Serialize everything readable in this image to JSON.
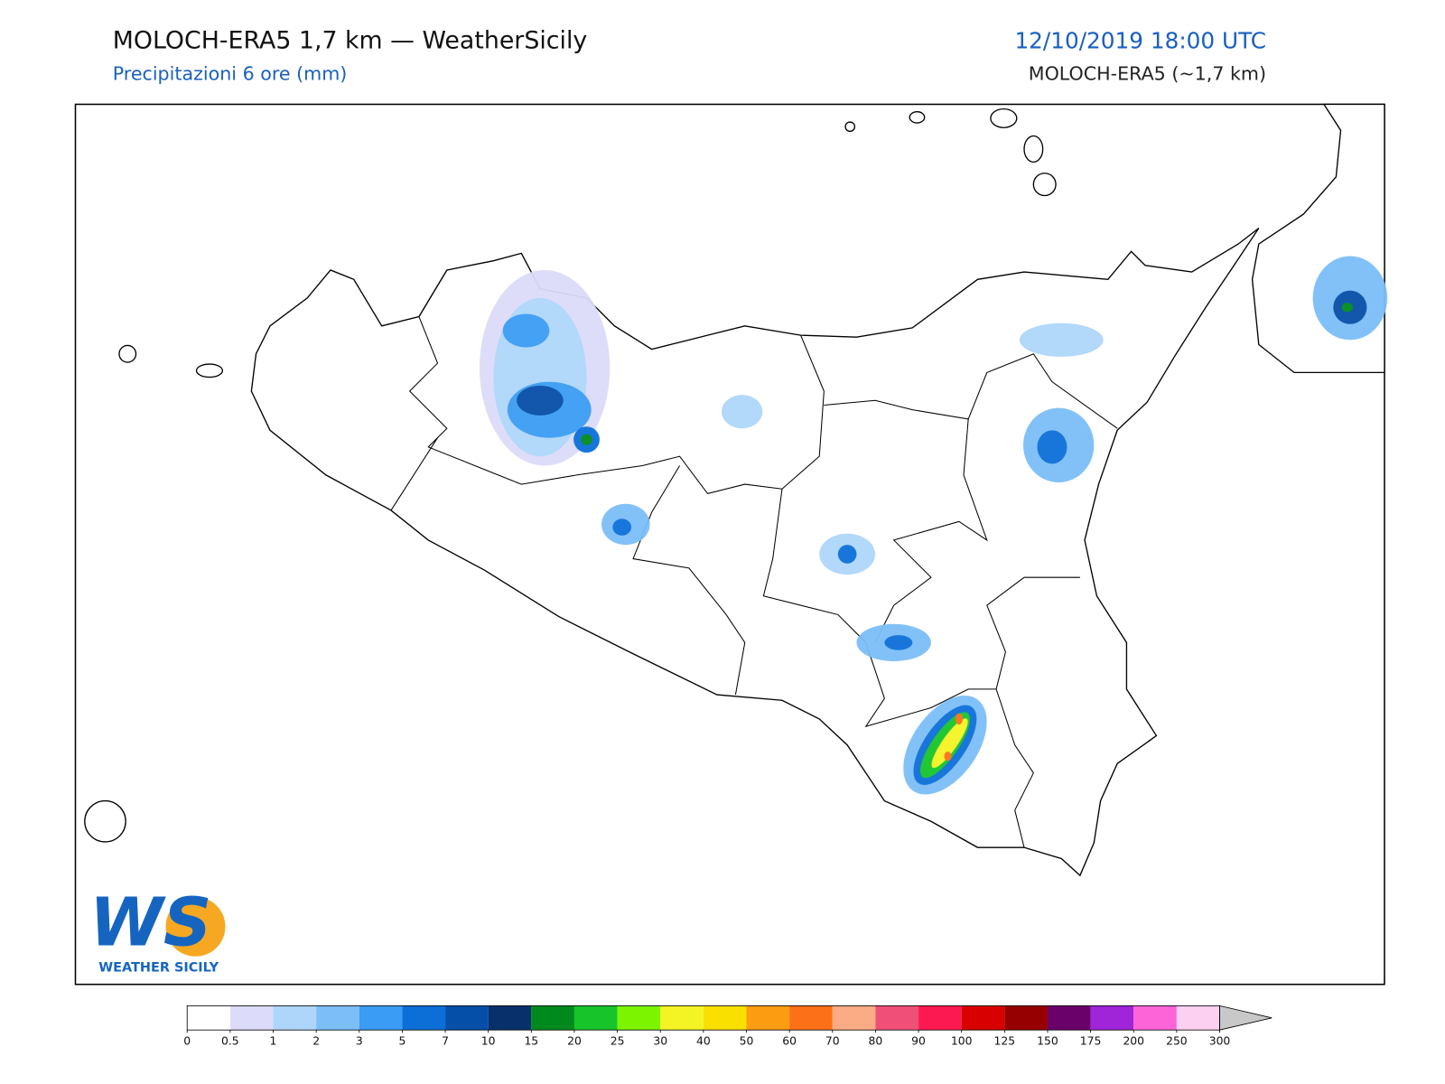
{
  "header": {
    "title": "MOLOCH-ERA5 1,7 km — WeatherSicily",
    "subtitle": "Precipitazioni 6 ore (mm)",
    "datetime": "12/10/2019 18:00 UTC",
    "model": "MOLOCH-ERA5 (~1,7 km)"
  },
  "logo": {
    "text": "WS",
    "caption": "WEATHER SICILY"
  },
  "colorbar": {
    "ticks": [
      0,
      0.5,
      1,
      2,
      3,
      5,
      7,
      10,
      15,
      20,
      25,
      30,
      40,
      50,
      60,
      70,
      80,
      90,
      100,
      125,
      150,
      175,
      200,
      250,
      300
    ],
    "colors": [
      "#ffffff",
      "#dcdcfa",
      "#aed6fa",
      "#7cbef8",
      "#3a9cf4",
      "#0c6fd8",
      "#064fa8",
      "#08306b",
      "#008a1e",
      "#17c42a",
      "#7cf400",
      "#f4f424",
      "#fae000",
      "#fc9c10",
      "#fc7018",
      "#fcac84",
      "#f05078",
      "#fc1850",
      "#d80000",
      "#960000",
      "#6a006a",
      "#a024d8",
      "#fc64d8",
      "#fcd0f0"
    ],
    "over_color": "#c8c8c8"
  }
}
